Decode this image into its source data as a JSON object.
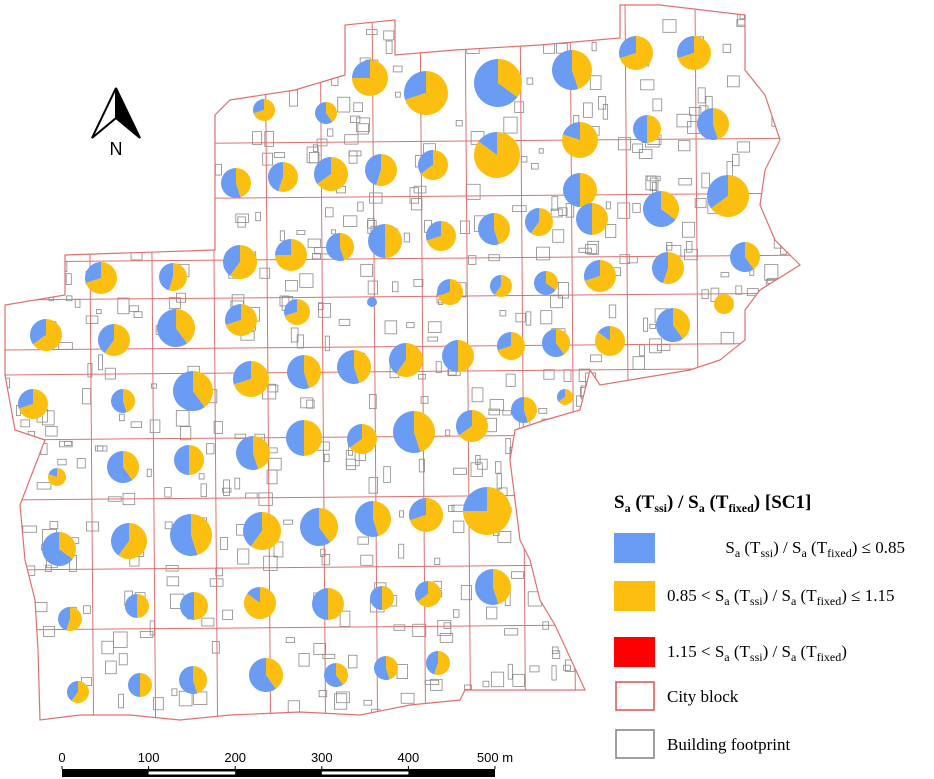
{
  "north_label": "N",
  "legend": {
    "title": [
      "S",
      "a",
      " (T",
      "ssi",
      ") / S",
      "a",
      " (T",
      "fixed",
      ")  [SC1]"
    ],
    "items": [
      {
        "color": "#6a9cf3",
        "text": [
          "S",
          "a",
          " (T",
          "ssi",
          ") / S",
          "a",
          " (T",
          "fixed",
          ") ≤ 0.85"
        ]
      },
      {
        "color": "#fdbf0f",
        "text": [
          "0.85 < S",
          "a",
          " (T",
          "ssi",
          ") / S",
          "a",
          " (T",
          "fixed",
          ") ≤ 1.15"
        ]
      },
      {
        "color": "#ff0000",
        "text": [
          "1.15 < S",
          "a",
          " (T",
          "ssi",
          ") / S",
          "a",
          " (T",
          "fixed",
          ")"
        ]
      },
      {
        "color": "#e05050",
        "text": [
          "City block"
        ]
      },
      {
        "color": "#808080",
        "text": [
          "Building footprint"
        ]
      }
    ]
  },
  "scale": {
    "ticks": [
      0,
      100,
      200,
      300,
      400,
      {
        "value": 500,
        "label": "500 m"
      }
    ]
  },
  "pies": [
    [
      25,
      75
    ],
    [
      30,
      70
    ],
    [
      65,
      35
    ],
    [
      55,
      45
    ],
    [
      30,
      70
    ],
    [
      30,
      70
    ],
    [
      30,
      70
    ],
    [
      60,
      40
    ],
    [
      20,
      80
    ],
    [
      50,
      50
    ],
    [
      55,
      45
    ],
    [
      55,
      45
    ],
    [
      45,
      55
    ],
    [
      35,
      65
    ],
    [
      45,
      55
    ],
    [
      35,
      65
    ],
    [
      15,
      85
    ],
    [
      50,
      50
    ],
    [
      65,
      35
    ],
    [
      35,
      65
    ],
    [
      50,
      50
    ],
    [
      30,
      70
    ],
    [
      55,
      45
    ],
    [
      40,
      60
    ],
    [
      50,
      50
    ],
    [
      55,
      45
    ],
    [
      25,
      75
    ],
    [
      40,
      60
    ],
    [
      45,
      55
    ],
    [
      60,
      40
    ],
    [
      30,
      70
    ],
    [
      45,
      55
    ],
    [
      30,
      70
    ],
    [
      40,
      60
    ],
    [
      65,
      35
    ],
    [
      30,
      70
    ],
    [
      0,
      100
    ],
    [
      35,
      65
    ],
    [
      40,
      60
    ],
    [
      60,
      40
    ],
    [
      30,
      70
    ],
    [
      30,
      70
    ],
    [
      100,
      0
    ],
    [
      15,
      85
    ],
    [
      60,
      40
    ],
    [
      55,
      45
    ],
    [
      55,
      45
    ],
    [
      40,
      60
    ],
    [
      50,
      50
    ],
    [
      30,
      70
    ],
    [
      60,
      40
    ],
    [
      30,
      70
    ],
    [
      60,
      40
    ],
    [
      55,
      45
    ],
    [
      30,
      70
    ],
    [
      55,
      45
    ],
    [
      35,
      65
    ],
    [
      35,
      65
    ],
    [
      55,
      45
    ],
    [
      35,
      65
    ],
    [
      50,
      50
    ],
    [
      55,
      45
    ],
    [
      50,
      50
    ],
    [
      60,
      40
    ],
    [
      20,
      80
    ],
    [
      25,
      75
    ],
    [
      30,
      70
    ],
    [
      55,
      45
    ],
    [
      60,
      40
    ],
    [
      40,
      60
    ],
    [
      55,
      45
    ],
    [
      40,
      60
    ],
    [
      65,
      35
    ],
    [
      55,
      45
    ],
    [
      35,
      65
    ],
    [
      50,
      50
    ],
    [
      50,
      50
    ],
    [
      15,
      85
    ],
    [
      50,
      50
    ],
    [
      50,
      50
    ],
    [
      45,
      55
    ],
    [
      45,
      55
    ],
    [
      55,
      45
    ],
    [
      60,
      40
    ],
    [
      60,
      40
    ],
    [
      55,
      45
    ],
    [
      50,
      50
    ],
    [
      40,
      60
    ]
  ]
}
